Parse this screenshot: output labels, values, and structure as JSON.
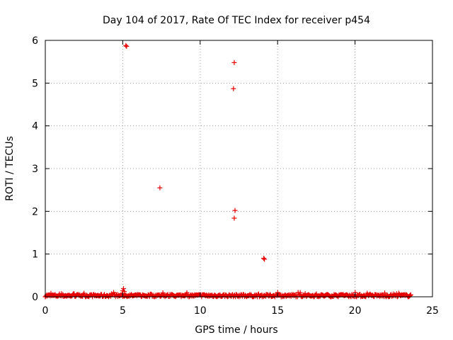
{
  "chart_data": {
    "type": "scatter",
    "title": "Day 104 of 2017, Rate Of TEC Index for receiver p454",
    "xlabel": "GPS time / hours",
    "ylabel": "ROTI / TECUs",
    "xlim": [
      0,
      25
    ],
    "ylim": [
      0,
      6
    ],
    "xticks": [
      0,
      5,
      10,
      15,
      20,
      25
    ],
    "yticks": [
      0,
      1,
      2,
      3,
      4,
      5,
      6
    ],
    "grid": true,
    "marker": "plus",
    "color": "#e60000",
    "series": [
      {
        "points": [
          [
            5.2,
            5.88
          ],
          [
            5.25,
            5.86
          ],
          [
            12.2,
            5.48
          ],
          [
            12.15,
            4.87
          ],
          [
            7.4,
            2.55
          ],
          [
            12.25,
            2.02
          ],
          [
            12.2,
            1.84
          ],
          [
            14.1,
            0.9
          ],
          [
            14.15,
            0.88
          ],
          [
            5.05,
            0.19
          ],
          [
            5.0,
            0.14
          ],
          [
            5.1,
            0.12
          ]
        ],
        "baseline": {
          "x_start": 0.0,
          "x_end": 23.6,
          "y_min": 0.0,
          "y_max": 0.1,
          "typical": 0.04
        }
      }
    ]
  }
}
